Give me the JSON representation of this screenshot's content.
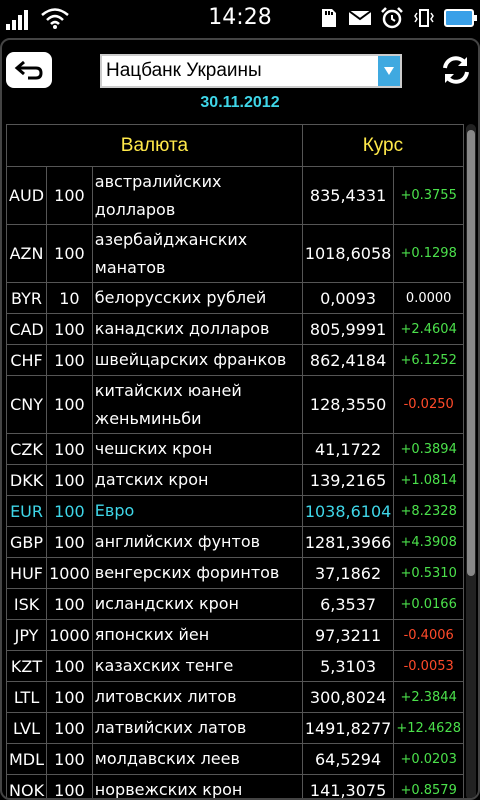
{
  "status_bar": {
    "time": "14:28",
    "icons": [
      "signal-icon",
      "wifi-icon",
      "sd-card-icon",
      "mail-icon",
      "alarm-icon",
      "vibrate-icon",
      "battery-icon"
    ]
  },
  "source_select": {
    "value": "Нацбанк Украины"
  },
  "date": "30.11.2012",
  "table": {
    "headers": {
      "currency": "Валюта",
      "rate": "Курс"
    },
    "rows": [
      {
        "code": "AUD",
        "unit": "100",
        "name": "австралийских долларов",
        "rate": "835,4331",
        "change": "+0.3755",
        "dir": "pos"
      },
      {
        "code": "AZN",
        "unit": "100",
        "name": "азербайджанских манатов",
        "rate": "1018,6058",
        "change": "+0.1298",
        "dir": "pos"
      },
      {
        "code": "BYR",
        "unit": "10",
        "name": "белорусских рублей",
        "rate": "0,0093",
        "change": "0.0000",
        "dir": "zero"
      },
      {
        "code": "CAD",
        "unit": "100",
        "name": "канадских долларов",
        "rate": "805,9991",
        "change": "+2.4604",
        "dir": "pos"
      },
      {
        "code": "CHF",
        "unit": "100",
        "name": "швейцарских франков",
        "rate": "862,4184",
        "change": "+6.1252",
        "dir": "pos"
      },
      {
        "code": "CNY",
        "unit": "100",
        "name": "китайских юаней женьминьби",
        "rate": "128,3550",
        "change": "-0.0250",
        "dir": "neg"
      },
      {
        "code": "CZK",
        "unit": "100",
        "name": "чешских крон",
        "rate": "41,1722",
        "change": "+0.3894",
        "dir": "pos"
      },
      {
        "code": "DKK",
        "unit": "100",
        "name": "датских крон",
        "rate": "139,2165",
        "change": "+1.0814",
        "dir": "pos"
      },
      {
        "code": "EUR",
        "unit": "100",
        "name": "Евро",
        "rate": "1038,6104",
        "change": "+8.2328",
        "dir": "pos",
        "highlight": true
      },
      {
        "code": "GBP",
        "unit": "100",
        "name": "английских фунтов",
        "rate": "1281,3966",
        "change": "+4.3908",
        "dir": "pos"
      },
      {
        "code": "HUF",
        "unit": "1000",
        "name": "венгерских форинтов",
        "rate": "37,1862",
        "change": "+0.5310",
        "dir": "pos"
      },
      {
        "code": "ISK",
        "unit": "100",
        "name": "исландских крон",
        "rate": "6,3537",
        "change": "+0.0166",
        "dir": "pos"
      },
      {
        "code": "JPY",
        "unit": "1000",
        "name": "японских йен",
        "rate": "97,3211",
        "change": "-0.4006",
        "dir": "neg"
      },
      {
        "code": "KZT",
        "unit": "100",
        "name": "казахских тенге",
        "rate": "5,3103",
        "change": "-0.0053",
        "dir": "neg"
      },
      {
        "code": "LTL",
        "unit": "100",
        "name": "литовских литов",
        "rate": "300,8024",
        "change": "+2.3844",
        "dir": "pos"
      },
      {
        "code": "LVL",
        "unit": "100",
        "name": "латвийских латов",
        "rate": "1491,8277",
        "change": "+12.4628",
        "dir": "pos"
      },
      {
        "code": "MDL",
        "unit": "100",
        "name": "молдавских леев",
        "rate": "64,5294",
        "change": "+0.0203",
        "dir": "pos"
      },
      {
        "code": "NOK",
        "unit": "100",
        "name": "норвежских крон",
        "rate": "141,3075",
        "change": "+0.8579",
        "dir": "pos"
      }
    ]
  },
  "colors": {
    "accent_cyan": "#3fd6e8",
    "header_yellow": "#ffe94a",
    "positive": "#4be04b",
    "negative": "#ff4a2a",
    "select_arrow": "#3fa9e0"
  }
}
